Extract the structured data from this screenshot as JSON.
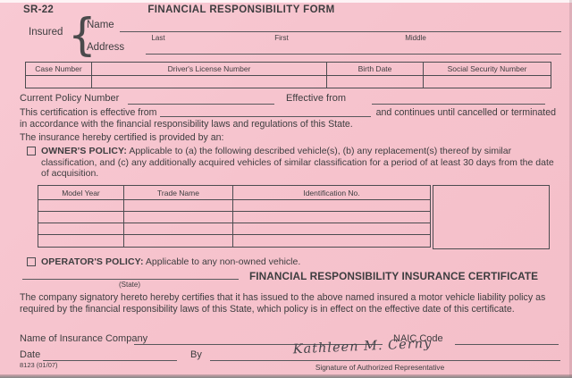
{
  "page": {
    "form_code": "SR-22",
    "title": "FINANCIAL RESPONSIBILITY FORM",
    "form_number": "8123 (01/07)"
  },
  "insured": {
    "label": "Insured",
    "brace": "{",
    "name_label": "Name",
    "address_label": "Address",
    "name_sublabels": {
      "last": "Last",
      "first": "First",
      "middle": "Middle"
    }
  },
  "id_table": {
    "headers": [
      "Case Number",
      "Driver's License Number",
      "Birth Date",
      "Social Security Number"
    ],
    "row_values": [
      "",
      "",
      "",
      ""
    ]
  },
  "policy_numbers": {
    "current_policy_label": "Current Policy Number",
    "effective_from_label": "Effective from"
  },
  "certification": {
    "line1_prefix": "This certification is effective from",
    "line1_suffix": "and continues until cancelled or terminated",
    "line2": "in accordance with the financial responsibility laws and regulations of this State.",
    "provided_by": "The insurance hereby certified is provided by an:"
  },
  "owners_policy": {
    "label": "OWNER'S POLICY:",
    "text": " Applicable to (a) the following described vehicle(s), (b) any replacement(s) thereof by similar classification, and (c) any additionally acquired vehicles of similar classification for a period of at least 30 days from the date of acquisition."
  },
  "vehicle_table": {
    "headers": [
      "Model Year",
      "Trade Name",
      "Identification No."
    ],
    "empty_rows": 4
  },
  "operators_policy": {
    "label": "OPERATOR'S POLICY:",
    "text": " Applicable to any non-owned vehicle."
  },
  "certificate": {
    "state_sublabel": "(State)",
    "title": "FINANCIAL RESPONSIBILITY INSURANCE CERTIFICATE",
    "body": "The company signatory hereto hereby certifies that it has issued to the above named insured a motor vehicle liability policy as required by the financial responsibility laws of this State, which policy is in effect on the effective date of this certificate."
  },
  "signature_block": {
    "company_label": "Name of Insurance Company",
    "naic_label": "NAIC Code",
    "date_label": "Date",
    "by_label": "By",
    "signature": "Kathleen M. Cerny",
    "caption": "Signature of Authorized Representative"
  },
  "colors": {
    "background": "#f6c3cd",
    "text": "#3d3d3f",
    "line": "#58585c",
    "table_border": "#4c4c50"
  }
}
